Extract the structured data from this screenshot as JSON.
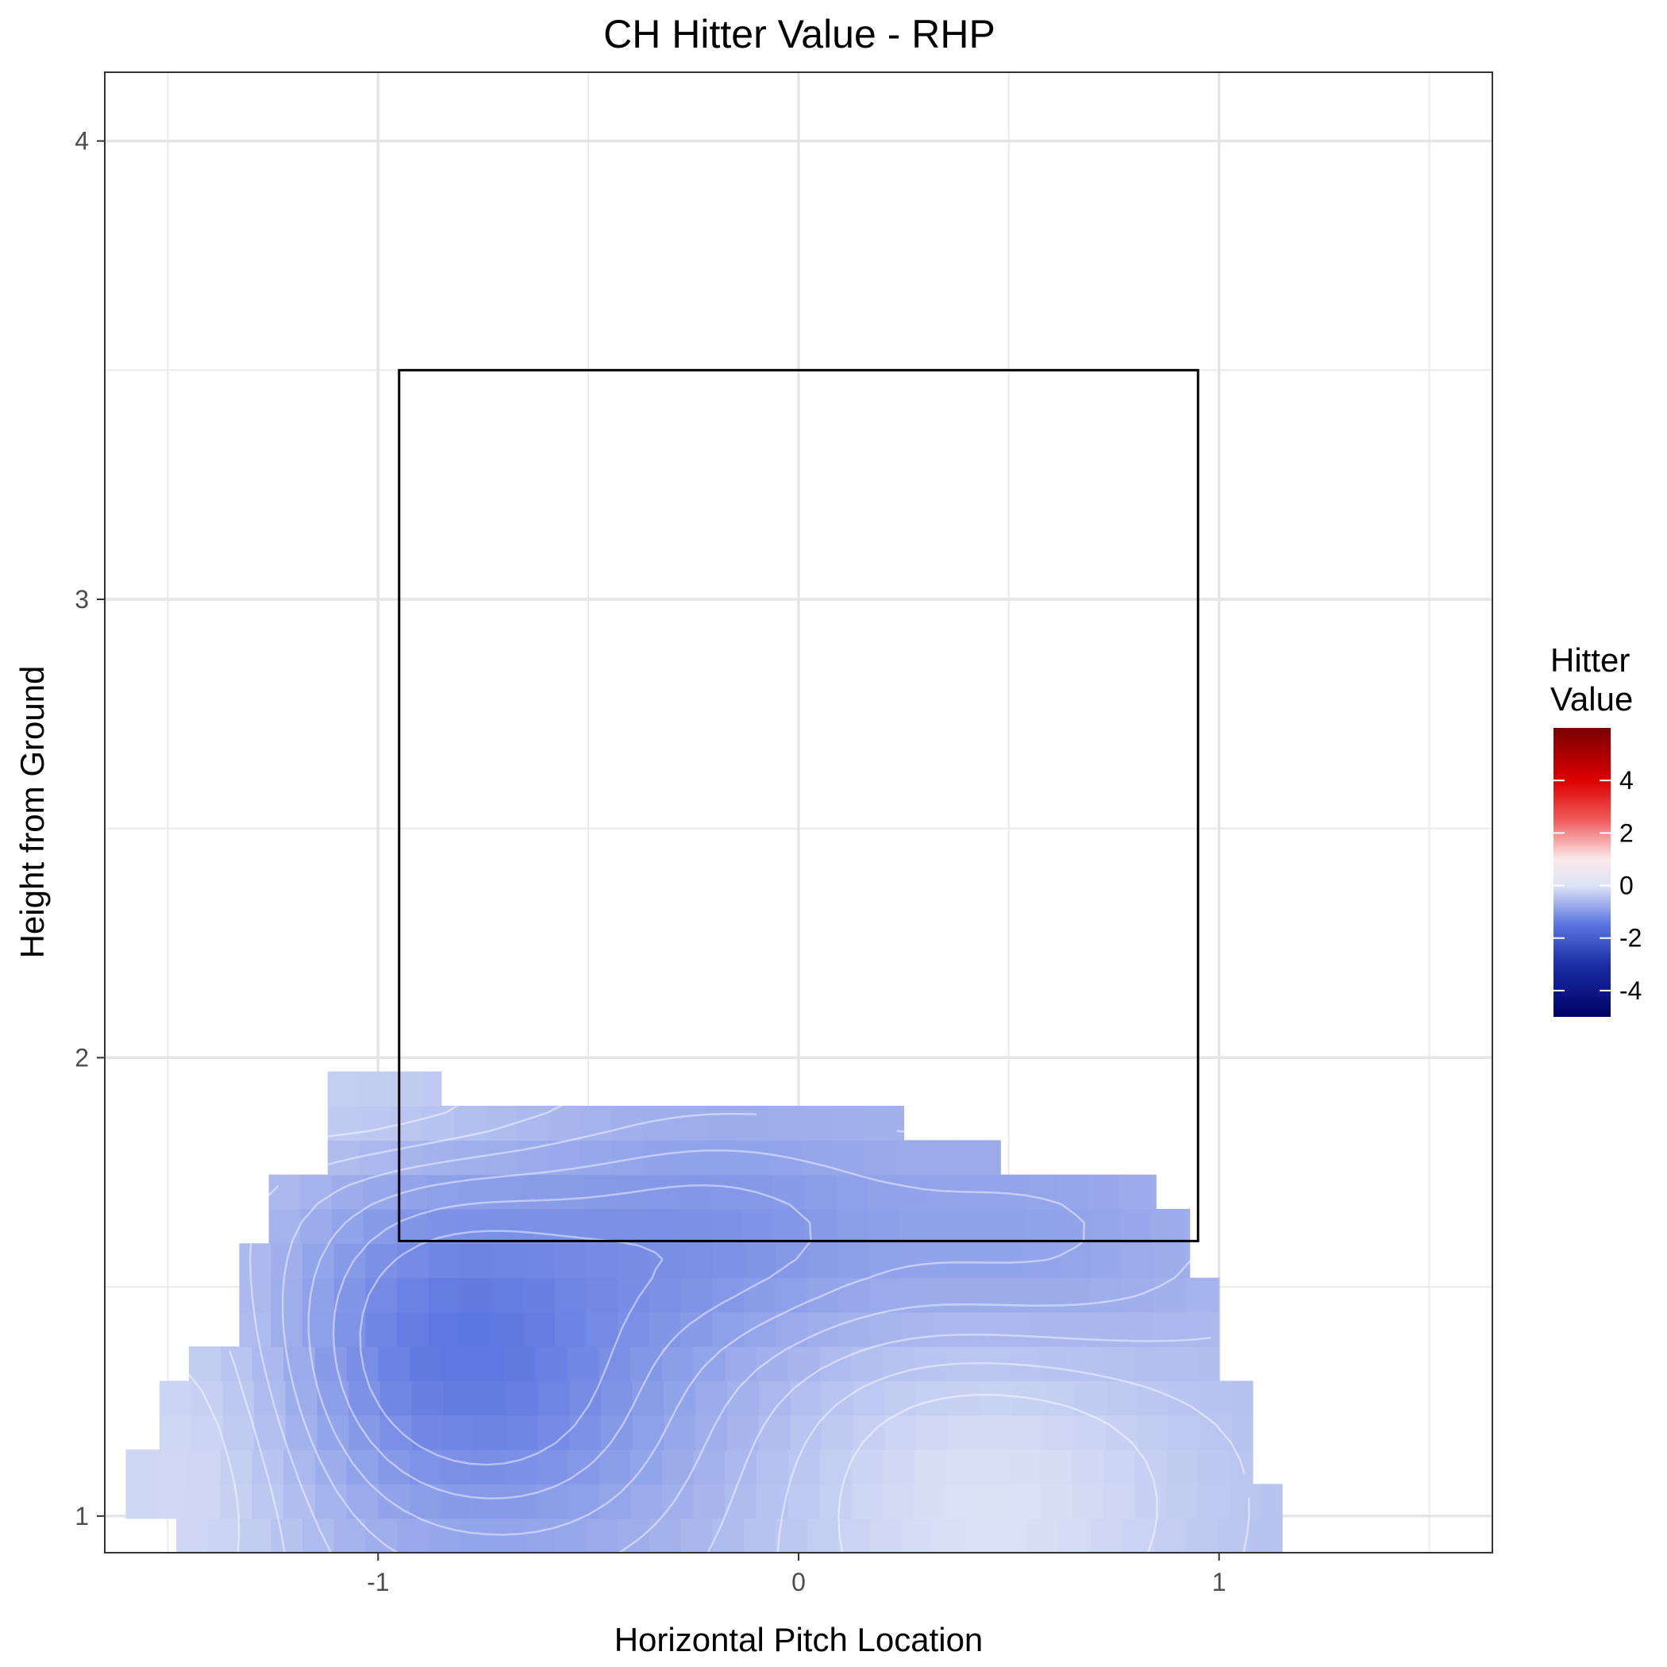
{
  "chart_data": {
    "type": "heatmap",
    "title": "CH Hitter Value - RHP",
    "xlabel": "Horizontal Pitch Location",
    "ylabel": "Height from Ground",
    "xlim": [
      -1.65,
      1.65
    ],
    "ylim": [
      0.92,
      4.15
    ],
    "x_ticks": [
      -1,
      0,
      1
    ],
    "x_tick_labels": [
      "-1",
      "0",
      "1"
    ],
    "y_ticks": [
      1,
      2,
      3,
      4
    ],
    "y_tick_labels": [
      "1",
      "2",
      "3",
      "4"
    ],
    "grid": true,
    "strike_zone": {
      "x": [
        -0.95,
        0.95
      ],
      "y": [
        1.6,
        3.5
      ]
    },
    "legend": {
      "title_lines": [
        "Hitter",
        "Value"
      ],
      "position": "right",
      "range": [
        -5,
        6
      ],
      "ticks": [
        4,
        2,
        0,
        -2,
        -4
      ],
      "tick_labels": [
        "4",
        "2",
        "0",
        "-2",
        "-4"
      ],
      "colors": [
        {
          "value": -5,
          "color": "#000066"
        },
        {
          "value": -3,
          "color": "#1a2fa6"
        },
        {
          "value": -1.5,
          "color": "#5a74e0"
        },
        {
          "value": 0,
          "color": "#dde3f6"
        },
        {
          "value": 1,
          "color": "#fbeaea"
        },
        {
          "value": 2.5,
          "color": "#f05a5a"
        },
        {
          "value": 4,
          "color": "#dd0000"
        },
        {
          "value": 6,
          "color": "#7a0000"
        }
      ]
    },
    "grid_step": {
      "dx": 0.075,
      "dy": 0.075
    },
    "coverage": [
      {
        "y": 0.92,
        "x0": -1.33,
        "x1": 1.15
      },
      {
        "y": 0.95,
        "x0": -1.48,
        "x1": 1.15
      },
      {
        "y": 1.0,
        "x0": -1.6,
        "x1": 1.15
      },
      {
        "y": 1.05,
        "x0": -1.6,
        "x1": 1.08
      },
      {
        "y": 1.15,
        "x0": -1.52,
        "x1": 1.08
      },
      {
        "y": 1.3,
        "x0": -1.45,
        "x1": 1.0
      },
      {
        "y": 1.38,
        "x0": -1.33,
        "x1": 1.0
      },
      {
        "y": 1.5,
        "x0": -1.33,
        "x1": 0.93
      },
      {
        "y": 1.6,
        "x0": -1.26,
        "x1": 0.93
      },
      {
        "y": 1.65,
        "x0": -1.26,
        "x1": 0.85
      },
      {
        "y": 1.72,
        "x0": -1.18,
        "x1": 0.7
      },
      {
        "y": 1.78,
        "x0": -1.12,
        "x1": 0.48
      },
      {
        "y": 1.82,
        "x0": -1.12,
        "x1": 0.25
      },
      {
        "y": 1.86,
        "x0": -1.12,
        "x1": -0.1
      },
      {
        "y": 1.9,
        "x0": -1.12,
        "x1": -0.4
      },
      {
        "y": 1.92,
        "x0": -1.12,
        "x1": -0.85
      },
      {
        "y": 1.95,
        "x0": -1.12,
        "x1": -0.85
      }
    ],
    "value_field": {
      "base": -0.5,
      "troughs": [
        {
          "x": -0.85,
          "y": 1.42,
          "amp": -0.7,
          "sx": 0.28,
          "sy": 0.25
        },
        {
          "x": -0.2,
          "y": 1.62,
          "amp": -0.5,
          "sx": 0.3,
          "sy": 0.18
        },
        {
          "x": 0.55,
          "y": 1.58,
          "amp": -0.45,
          "sx": 0.35,
          "sy": 0.2
        },
        {
          "x": -0.6,
          "y": 1.2,
          "amp": -0.4,
          "sx": 0.35,
          "sy": 0.25
        }
      ],
      "ridges": [
        {
          "x": 0.45,
          "y": 1.05,
          "amp": 0.5,
          "sx": 0.35,
          "sy": 0.3
        },
        {
          "x": -1.45,
          "y": 1.1,
          "amp": 0.4,
          "sx": 0.2,
          "sy": 0.35
        },
        {
          "x": -1.0,
          "y": 1.9,
          "amp": 0.3,
          "sx": 0.3,
          "sy": 0.1
        }
      ]
    },
    "contour_levels": [
      -1.15,
      -1.0,
      -0.85,
      -0.7,
      -0.55,
      -0.4,
      -0.25
    ]
  }
}
